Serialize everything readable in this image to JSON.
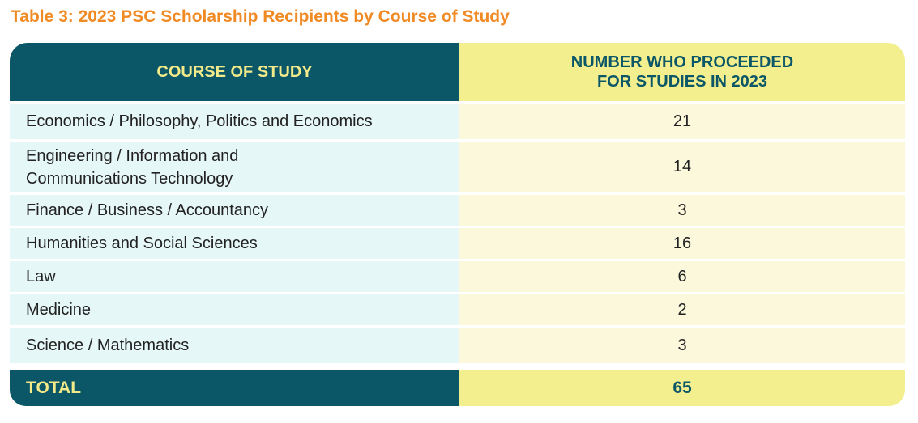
{
  "title": "Table 3: 2023 PSC Scholarship Recipients by Course of Study",
  "table": {
    "headers": {
      "course": "COURSE OF STUDY",
      "number_line1": "NUMBER WHO PROCEEDED",
      "number_line2": "FOR STUDIES IN 2023"
    },
    "rows": [
      {
        "course_lines": [
          "Economics / Philosophy, Politics and Economics"
        ],
        "count": "21"
      },
      {
        "course_lines": [
          "Engineering / Information and",
          "Communications Technology"
        ],
        "count": "14"
      },
      {
        "course_lines": [
          "Finance / Business / Accountancy"
        ],
        "count": "3"
      },
      {
        "course_lines": [
          "Humanities and Social Sciences"
        ],
        "count": "16"
      },
      {
        "course_lines": [
          "Law"
        ],
        "count": "6"
      },
      {
        "course_lines": [
          "Medicine"
        ],
        "count": "2"
      },
      {
        "course_lines": [
          "Science / Mathematics"
        ],
        "count": "3"
      }
    ],
    "total": {
      "label": "TOTAL",
      "count": "65"
    }
  },
  "colors": {
    "title": "#f08a24",
    "dark_teal": "#0b5767",
    "header_yellow": "#f4ef8e",
    "header_text_yellow": "#f3ea8a",
    "row_light_blue": "#e6f7f8",
    "row_light_yellow": "#fbf8dc"
  }
}
